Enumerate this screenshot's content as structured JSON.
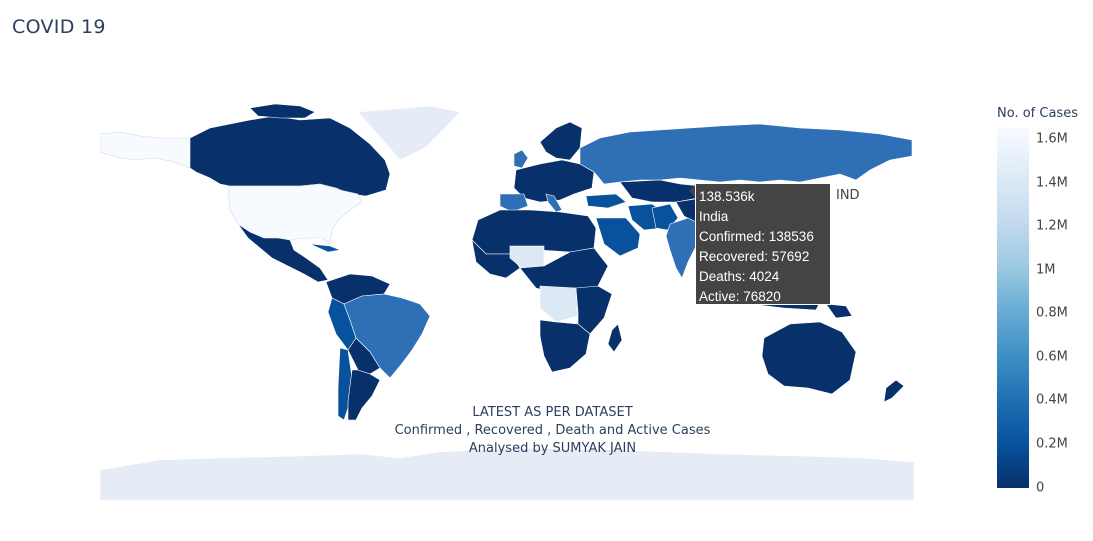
{
  "title": "COVID 19",
  "annotation": {
    "line1": "LATEST AS PER DATASET",
    "line2": "Confirmed , Recovered , Death and Active Cases",
    "line3": "Analysed by SUMYAK JAIN"
  },
  "hover": {
    "location_code": "IND",
    "value_label": "138.536k",
    "country": "India",
    "confirmed": "Confirmed: 138536",
    "recovered": "Recovered: 57692",
    "deaths": "Deaths: 4024",
    "active": "Active: 76820"
  },
  "colorbar": {
    "title": "No. of Cases",
    "ticks": [
      "0",
      "0.2M",
      "0.4M",
      "0.6M",
      "0.8M",
      "1M",
      "1.2M",
      "1.4M",
      "1.6M"
    ],
    "colorscale": [
      "#08306b",
      "#08519c",
      "#2171b5",
      "#4292c6",
      "#6baed6",
      "#9ecae1",
      "#c6dbef",
      "#deebf7",
      "#f7fbff"
    ]
  },
  "map": {
    "projection": "equirectangular",
    "colors": {
      "low": "#08306b",
      "mid": "#2e6fb5",
      "high": "#f7fbff",
      "light": "#dde8f5",
      "land_nodata": "#e5ecf6",
      "border": "#ffffff"
    }
  }
}
